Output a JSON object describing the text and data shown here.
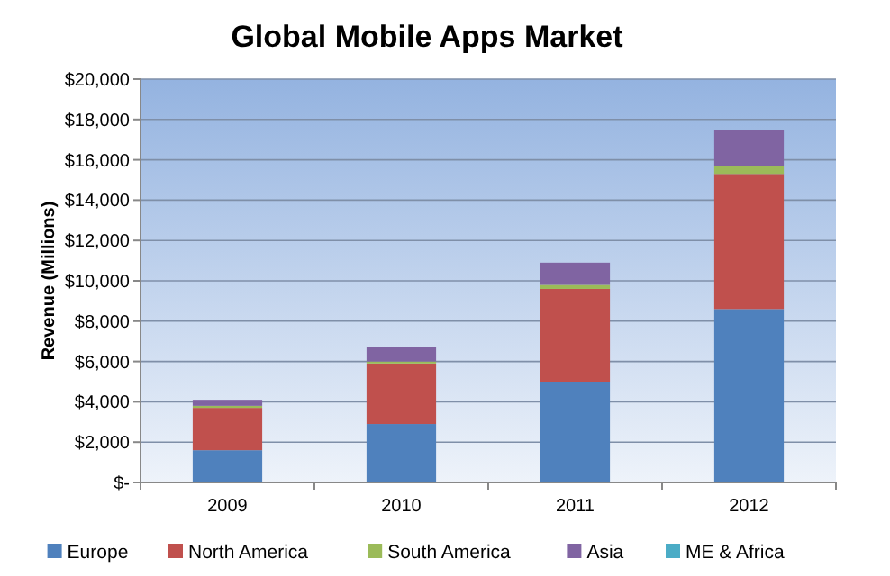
{
  "chart_data": {
    "type": "bar",
    "title": "Global Mobile Apps Market",
    "ylabel": "Revenue (Millions)",
    "categories": [
      "2009",
      "2010",
      "2011",
      "2012"
    ],
    "stacked": true,
    "series": [
      {
        "name": "Europe",
        "color": "#4f81bd",
        "values": [
          1600,
          2900,
          5000,
          8600
        ]
      },
      {
        "name": "North America",
        "color": "#c0504d",
        "values": [
          2100,
          3000,
          4600,
          6700
        ]
      },
      {
        "name": "South America",
        "color": "#9bbb59",
        "values": [
          100,
          100,
          200,
          400
        ]
      },
      {
        "name": "Asia",
        "color": "#8064a2",
        "values": [
          300,
          700,
          1100,
          1800
        ]
      },
      {
        "name": "ME & Africa",
        "color": "#4bacc6",
        "values": [
          null,
          null,
          null,
          null
        ]
      }
    ],
    "ylim": [
      0,
      20000
    ],
    "yticks": [
      {
        "value": 0,
        "label": "$-"
      },
      {
        "value": 2000,
        "label": "$2,000"
      },
      {
        "value": 4000,
        "label": "$4,000"
      },
      {
        "value": 6000,
        "label": "$6,000"
      },
      {
        "value": 8000,
        "label": "$8,000"
      },
      {
        "value": 10000,
        "label": "$10,000"
      },
      {
        "value": 12000,
        "label": "$12,000"
      },
      {
        "value": 14000,
        "label": "$14,000"
      },
      {
        "value": 16000,
        "label": "$16,000"
      },
      {
        "value": 18000,
        "label": "$18,000"
      },
      {
        "value": 20000,
        "label": "$20,000"
      }
    ],
    "grid": "y",
    "legend": "bottom"
  }
}
